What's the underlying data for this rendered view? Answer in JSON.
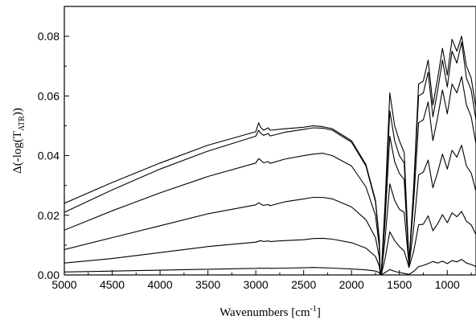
{
  "chart_data": {
    "type": "line",
    "title": "",
    "xlabel": "Wavenumbers [cm",
    "xlabel_sup": "-1",
    "xlabel_end": "]",
    "ylabel": "Δ(-log(T",
    "ylabel_sub": "ATR",
    "ylabel_end": "))",
    "xlim": [
      5000,
      700
    ],
    "ylim": [
      0.0,
      0.09
    ],
    "x_reversed": true,
    "grid": false,
    "legend": "none",
    "x_ticks": [
      5000,
      4500,
      4000,
      3500,
      3000,
      2500,
      2000,
      1500,
      1000
    ],
    "x_tick_labels": [
      "5000",
      "4500",
      "4000",
      "3500",
      "3000",
      "2500",
      "2000",
      "1500",
      "1000"
    ],
    "y_ticks": [
      0.0,
      0.02,
      0.04,
      0.06,
      0.08
    ],
    "y_tick_labels": [
      "0.00",
      "0.02",
      "0.04",
      "0.06",
      "0.08"
    ],
    "line_color": "#000000",
    "series": [
      {
        "x": [
          5000,
          4500,
          4000,
          3500,
          3000,
          2950,
          2920,
          2870,
          2850,
          2700,
          2500,
          2400,
          2300,
          2200,
          2000,
          1850,
          1750,
          1710,
          1700,
          1690,
          1650,
          1600,
          1550,
          1500,
          1450,
          1400,
          1350,
          1300,
          1250,
          1200,
          1150,
          1100,
          1050,
          1000,
          950,
          900,
          850,
          800,
          750,
          700
        ],
        "y": [
          0.001,
          0.0013,
          0.0016,
          0.0019,
          0.0022,
          0.0023,
          0.0022,
          0.0023,
          0.0022,
          0.0023,
          0.0024,
          0.0025,
          0.0024,
          0.0023,
          0.002,
          0.0017,
          0.0013,
          0.0008,
          0.0,
          0.0,
          0.0008,
          0.0018,
          0.0012,
          0.0008,
          0.0005,
          0.0002,
          0.0012,
          0.0028,
          0.0032,
          0.0038,
          0.0045,
          0.004,
          0.0046,
          0.0038,
          0.0048,
          0.0044,
          0.0052,
          0.004,
          0.0035,
          0.0028
        ]
      },
      {
        "x": [
          5000,
          4500,
          4000,
          3500,
          3000,
          2950,
          2920,
          2870,
          2850,
          2700,
          2500,
          2400,
          2300,
          2200,
          2000,
          1850,
          1750,
          1710,
          1700,
          1690,
          1650,
          1600,
          1550,
          1500,
          1450,
          1400,
          1350,
          1300,
          1250,
          1200,
          1150,
          1100,
          1050,
          1000,
          950,
          900,
          850,
          800,
          750,
          700
        ],
        "y": [
          0.004,
          0.0055,
          0.0075,
          0.0095,
          0.011,
          0.0115,
          0.0112,
          0.0114,
          0.0112,
          0.0115,
          0.0118,
          0.0122,
          0.0123,
          0.012,
          0.0108,
          0.009,
          0.0062,
          0.003,
          0.0,
          0.0,
          0.0055,
          0.0145,
          0.0115,
          0.0095,
          0.008,
          0.0025,
          0.008,
          0.0168,
          0.017,
          0.0198,
          0.0148,
          0.0172,
          0.0202,
          0.0175,
          0.0208,
          0.0195,
          0.0213,
          0.018,
          0.0168,
          0.0135
        ]
      },
      {
        "x": [
          5000,
          4500,
          4000,
          3500,
          3000,
          2970,
          2950,
          2920,
          2870,
          2850,
          2700,
          2500,
          2400,
          2300,
          2200,
          2000,
          1850,
          1750,
          1710,
          1700,
          1690,
          1650,
          1600,
          1550,
          1500,
          1450,
          1400,
          1350,
          1300,
          1250,
          1200,
          1150,
          1100,
          1050,
          1000,
          950,
          900,
          850,
          800,
          750,
          700
        ],
        "y": [
          0.0085,
          0.0125,
          0.0165,
          0.0205,
          0.0235,
          0.0242,
          0.0238,
          0.0233,
          0.0236,
          0.0232,
          0.0245,
          0.0255,
          0.026,
          0.026,
          0.0255,
          0.0228,
          0.0185,
          0.0125,
          0.006,
          0.0,
          0.0,
          0.012,
          0.0305,
          0.025,
          0.022,
          0.021,
          0.003,
          0.016,
          0.0335,
          0.0345,
          0.0385,
          0.0292,
          0.0345,
          0.0405,
          0.0355,
          0.0418,
          0.0395,
          0.0435,
          0.0365,
          0.0342,
          0.028
        ]
      },
      {
        "x": [
          5000,
          4500,
          4000,
          3500,
          3000,
          2970,
          2950,
          2920,
          2870,
          2850,
          2700,
          2500,
          2400,
          2300,
          2200,
          2000,
          1850,
          1750,
          1710,
          1700,
          1690,
          1650,
          1600,
          1550,
          1500,
          1450,
          1400,
          1350,
          1300,
          1250,
          1200,
          1150,
          1100,
          1050,
          1000,
          950,
          900,
          850,
          800,
          750,
          700
        ],
        "y": [
          0.015,
          0.0215,
          0.0275,
          0.033,
          0.0375,
          0.039,
          0.0385,
          0.0376,
          0.038,
          0.0374,
          0.0388,
          0.04,
          0.0405,
          0.0408,
          0.04,
          0.0365,
          0.0295,
          0.02,
          0.0095,
          0.0,
          0.0,
          0.018,
          0.0465,
          0.038,
          0.034,
          0.032,
          0.004,
          0.025,
          0.051,
          0.052,
          0.058,
          0.045,
          0.053,
          0.062,
          0.054,
          0.064,
          0.061,
          0.0665,
          0.057,
          0.053,
          0.044
        ]
      },
      {
        "x": [
          5000,
          4500,
          4000,
          3500,
          3000,
          2970,
          2950,
          2920,
          2870,
          2850,
          2700,
          2500,
          2400,
          2300,
          2200,
          2000,
          1850,
          1750,
          1710,
          1700,
          1690,
          1650,
          1600,
          1550,
          1500,
          1450,
          1400,
          1350,
          1300,
          1250,
          1200,
          1150,
          1100,
          1050,
          1000,
          950,
          900,
          850,
          800,
          750,
          700
        ],
        "y": [
          0.021,
          0.0285,
          0.0355,
          0.0415,
          0.0465,
          0.0485,
          0.0475,
          0.0468,
          0.0474,
          0.0466,
          0.0478,
          0.0488,
          0.0493,
          0.0492,
          0.0485,
          0.0445,
          0.0365,
          0.0245,
          0.0115,
          0.0,
          0.0,
          0.022,
          0.055,
          0.045,
          0.04,
          0.0375,
          0.004,
          0.029,
          0.06,
          0.061,
          0.068,
          0.053,
          0.062,
          0.072,
          0.063,
          0.075,
          0.071,
          0.078,
          0.066,
          0.062,
          0.052
        ]
      },
      {
        "x": [
          5000,
          4500,
          4000,
          3500,
          3000,
          2970,
          2950,
          2920,
          2870,
          2850,
          2700,
          2500,
          2400,
          2300,
          2200,
          2000,
          1850,
          1750,
          1710,
          1700,
          1690,
          1650,
          1600,
          1550,
          1500,
          1450,
          1400,
          1350,
          1300,
          1250,
          1200,
          1150,
          1100,
          1050,
          1000,
          950,
          900,
          850,
          800,
          750,
          700
        ],
        "y": [
          0.024,
          0.031,
          0.0375,
          0.0435,
          0.048,
          0.051,
          0.0495,
          0.0485,
          0.0493,
          0.0485,
          0.049,
          0.0495,
          0.05,
          0.0497,
          0.049,
          0.045,
          0.037,
          0.025,
          0.012,
          0.0,
          0.0,
          0.024,
          0.061,
          0.05,
          0.045,
          0.041,
          0.004,
          0.03,
          0.064,
          0.065,
          0.072,
          0.057,
          0.066,
          0.076,
          0.067,
          0.079,
          0.075,
          0.08,
          0.07,
          0.066,
          0.056
        ]
      }
    ]
  }
}
